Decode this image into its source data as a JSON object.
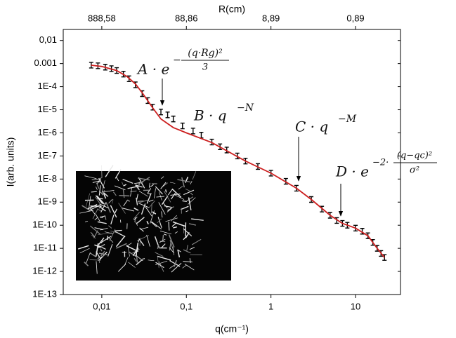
{
  "chart_data": {
    "type": "scatter",
    "xlabel": "q(cm⁻¹)",
    "ylabel": "I(arb. units)",
    "x2label": "R(cm)",
    "xscale": "log",
    "yscale": "log",
    "xlim": [
      0.0035,
      34
    ],
    "ylim": [
      1e-13,
      0.03
    ],
    "xticks": [
      {
        "value": 0.01,
        "label": "0,01"
      },
      {
        "value": 0.1,
        "label": "0,1"
      },
      1,
      10
    ],
    "x2ticks": [
      {
        "value": 0.01,
        "label": "888,58"
      },
      {
        "value": 0.1,
        "label": "88,86"
      },
      {
        "value": 1,
        "label": "8,89"
      },
      {
        "value": 10,
        "label": "0,89"
      }
    ],
    "yticks": [
      {
        "value": 0.01,
        "label": "0,01"
      },
      0.001,
      {
        "value": 0.0001,
        "label": "1E-4"
      },
      {
        "value": 1e-05,
        "label": "1E-5"
      },
      {
        "value": 1e-06,
        "label": "1E-6"
      },
      {
        "value": 1e-07,
        "label": "1E-7"
      },
      {
        "value": 1e-08,
        "label": "1E-8"
      },
      {
        "value": 1e-09,
        "label": "1E-9"
      },
      {
        "value": 1e-10,
        "label": "1E-10"
      },
      {
        "value": 1e-11,
        "label": "1E-11"
      },
      {
        "value": 1e-12,
        "label": "1E-12"
      },
      {
        "value": 1e-13,
        "label": "1E-13"
      }
    ],
    "series": [
      {
        "color": "#000000",
        "x": [
          0.0075,
          0.009,
          0.011,
          0.013,
          0.015,
          0.018,
          0.021,
          0.025,
          0.03,
          0.035,
          0.04,
          0.05,
          0.06,
          0.07,
          0.09,
          0.12,
          0.15,
          0.2,
          0.25,
          0.3,
          0.4,
          0.5,
          0.7,
          1,
          1.5,
          2,
          3,
          4,
          5,
          6,
          7,
          8,
          10,
          12,
          14,
          16,
          18,
          20,
          22
        ],
        "values": [
          0.00085,
          0.0008,
          0.0007,
          0.0006,
          0.0005,
          0.00035,
          0.00022,
          0.00012,
          5e-05,
          2.5e-05,
          1.3e-05,
          8e-06,
          6e-06,
          4e-06,
          2e-06,
          1.2e-06,
          8e-07,
          4e-07,
          2.5e-07,
          1.8e-07,
          1e-07,
          6e-08,
          3.5e-08,
          1.8e-08,
          8e-09,
          4e-09,
          1.3e-09,
          5e-10,
          2.7e-10,
          1.6e-10,
          1.2e-10,
          1e-10,
          7.5e-11,
          5.5e-11,
          3.5e-11,
          1.8e-11,
          1e-11,
          6e-12,
          4e-12
        ]
      },
      {
        "color": "#cc1f1f",
        "x": [
          0.0075,
          0.01,
          0.015,
          0.02,
          0.025,
          0.03,
          0.04,
          0.05,
          0.07,
          0.1,
          0.2,
          0.5,
          1,
          2,
          3,
          5,
          7,
          10,
          14,
          18,
          22
        ],
        "values": [
          0.00085,
          0.00075,
          0.0005,
          0.00027,
          0.00013,
          5.5e-05,
          1.2e-05,
          4e-06,
          1.7e-06,
          1e-06,
          3.8e-07,
          6e-08,
          1.8e-08,
          4e-09,
          1.3e-09,
          2.7e-10,
          1.2e-10,
          7.5e-11,
          3.5e-11,
          1e-11,
          4e-12
        ]
      }
    ],
    "annotations": [
      {
        "text": "A · e",
        "exponent": "−",
        "numerator": "(q·Rg)²",
        "denominator": "3"
      },
      {
        "text": "B · q",
        "exponent": "−N"
      },
      {
        "text": "C · q",
        "exponent": "−M"
      },
      {
        "text": "D · e",
        "exponent": "−2·",
        "numerator": "(q−qc)²",
        "denominator": "σ²"
      }
    ]
  }
}
